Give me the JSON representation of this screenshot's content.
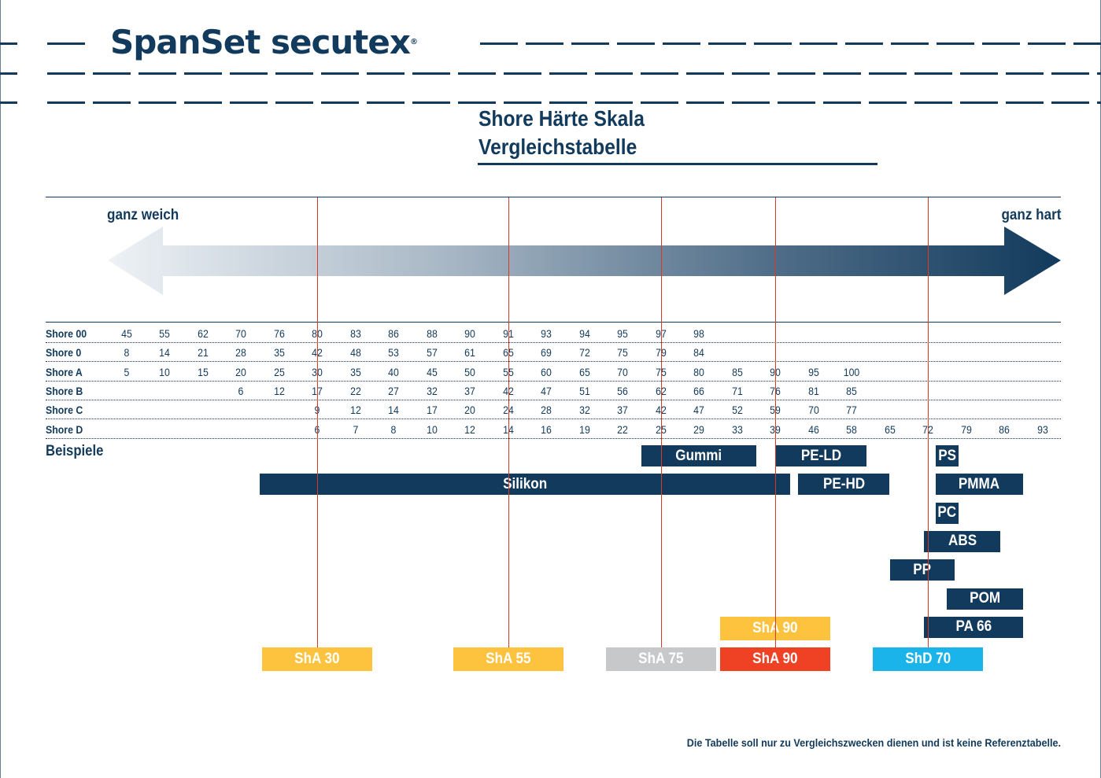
{
  "brand": {
    "logo": "SpanSet secutex",
    "logo_mark": "®"
  },
  "title": {
    "line1": "Shore Härte Skala",
    "line2": "Vergleichstabelle"
  },
  "chart_data": {
    "type": "table",
    "arrow": {
      "left_label": "ganz weich",
      "right_label": "ganz hart"
    },
    "column_count": 25,
    "rows": [
      {
        "label": "Shore 00",
        "values": [
          "45",
          "55",
          "62",
          "70",
          "76",
          "80",
          "83",
          "86",
          "88",
          "90",
          "91",
          "93",
          "94",
          "95",
          "97",
          "98",
          "",
          "",
          "",
          "",
          "",
          "",
          "",
          "",
          ""
        ]
      },
      {
        "label": "Shore 0",
        "values": [
          "8",
          "14",
          "21",
          "28",
          "35",
          "42",
          "48",
          "53",
          "57",
          "61",
          "65",
          "69",
          "72",
          "75",
          "79",
          "84",
          "",
          "",
          "",
          "",
          "",
          "",
          "",
          "",
          ""
        ]
      },
      {
        "label": "Shore A",
        "values": [
          "5",
          "10",
          "15",
          "20",
          "25",
          "30",
          "35",
          "40",
          "45",
          "50",
          "55",
          "60",
          "65",
          "70",
          "75",
          "80",
          "85",
          "90",
          "95",
          "100",
          "",
          "",
          "",
          "",
          ""
        ]
      },
      {
        "label": "Shore B",
        "values": [
          "",
          "",
          "",
          "6",
          "12",
          "17",
          "22",
          "27",
          "32",
          "37",
          "42",
          "47",
          "51",
          "56",
          "62",
          "66",
          "71",
          "76",
          "81",
          "85",
          "",
          "",
          "",
          "",
          ""
        ]
      },
      {
        "label": "Shore C",
        "values": [
          "",
          "",
          "",
          "",
          "",
          "9",
          "12",
          "14",
          "17",
          "20",
          "24",
          "28",
          "32",
          "37",
          "42",
          "47",
          "52",
          "59",
          "70",
          "77",
          "",
          "",
          "",
          "",
          ""
        ]
      },
      {
        "label": "Shore D",
        "values": [
          "",
          "",
          "",
          "",
          "",
          "6",
          "7",
          "8",
          "10",
          "12",
          "14",
          "16",
          "19",
          "22",
          "25",
          "29",
          "33",
          "39",
          "46",
          "58",
          "65",
          "72",
          "79",
          "86",
          "93"
        ]
      }
    ],
    "examples_label": "Beispiele",
    "examples": [
      {
        "label": "Gummi",
        "start_col": 13.5,
        "end_col": 16.5
      },
      {
        "label": "PE-LD",
        "start_col": 17.0,
        "end_col": 19.4
      },
      {
        "label": "Silikon",
        "start_col": 3.5,
        "end_col": 17.4
      },
      {
        "label": "PE-HD",
        "start_col": 17.6,
        "end_col": 20.0
      },
      {
        "label": "PS",
        "start_col": 21.2,
        "end_col": 21.8
      },
      {
        "label": "PMMA",
        "start_col": 21.2,
        "end_col": 23.5
      },
      {
        "label": "PC",
        "start_col": 21.2,
        "end_col": 21.8
      },
      {
        "label": "ABS",
        "start_col": 20.9,
        "end_col": 22.9
      },
      {
        "label": "PP",
        "start_col": 20.0,
        "end_col": 21.7
      },
      {
        "label": "POM",
        "start_col": 21.5,
        "end_col": 23.5
      },
      {
        "label": "PA 66",
        "start_col": 20.9,
        "end_col": 23.5
      }
    ],
    "reference_samples": [
      {
        "label": "ShA 30",
        "col": 5,
        "color": "#fdc23e"
      },
      {
        "label": "ShA 55",
        "col": 10,
        "color": "#fdc23e"
      },
      {
        "label": "ShA 75",
        "col": 14,
        "color": "#c7c8ca"
      },
      {
        "label": "ShA 90",
        "col": 17,
        "color": "#fdc23e"
      },
      {
        "label": "ShA 90",
        "col": 17,
        "color": "#ef4123"
      },
      {
        "label": "ShD 70",
        "col": 21,
        "color": "#1ab4eb"
      }
    ],
    "reference_line_color": "#d83b25",
    "bar_color": "#123a5c"
  },
  "footnote": "Die Tabelle soll nur zu Vergleichszwecken dienen und ist keine Referenztabelle."
}
